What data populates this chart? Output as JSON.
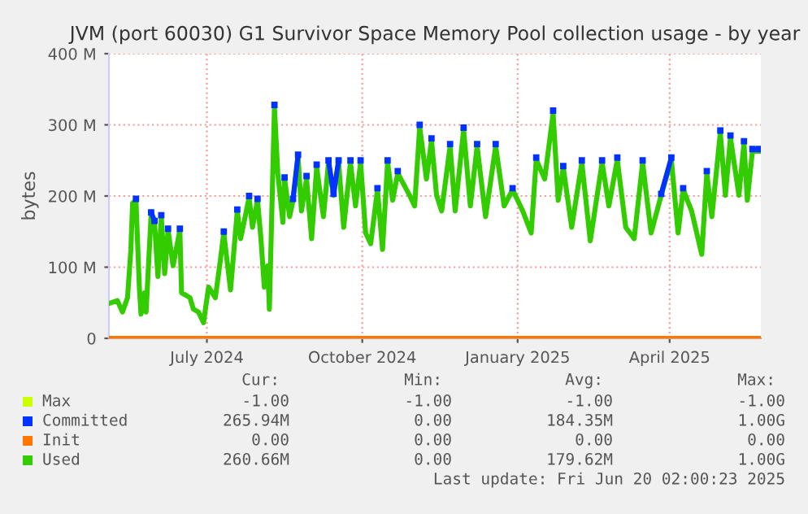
{
  "chart_data": {
    "type": "line",
    "title": "JVM (port 60030) G1 Survivor Space Memory Pool collection usage - by year",
    "ylabel": "bytes",
    "xlim": [
      "2024-05-04",
      "2025-05-25"
    ],
    "xticks": [
      {
        "value": "2024-07-01",
        "label": "July 2024"
      },
      {
        "value": "2024-10-01",
        "label": "October 2024"
      },
      {
        "value": "2025-01-01",
        "label": "January 2025"
      },
      {
        "value": "2025-04-01",
        "label": "April 2025"
      }
    ],
    "ylim": [
      0,
      400000000
    ],
    "yticks": [
      {
        "value": 0,
        "label": "0"
      },
      {
        "value": 100000000,
        "label": "100 M"
      },
      {
        "value": 200000000,
        "label": "200 M"
      },
      {
        "value": 300000000,
        "label": "300 M"
      },
      {
        "value": 400000000,
        "label": "400 M"
      }
    ],
    "grid": true,
    "legend": "bottom",
    "x": [
      "2024-05-04",
      "2024-05-09",
      "2024-05-12",
      "2024-05-15",
      "2024-05-17",
      "2024-05-18",
      "2024-05-20",
      "2024-05-22",
      "2024-05-23",
      "2024-05-25",
      "2024-05-26",
      "2024-05-29",
      "2024-05-31",
      "2024-06-02",
      "2024-06-04",
      "2024-06-06",
      "2024-06-08",
      "2024-06-11",
      "2024-06-15",
      "2024-06-16",
      "2024-06-19",
      "2024-06-21",
      "2024-06-23",
      "2024-06-26",
      "2024-06-29",
      "2024-07-02",
      "2024-07-06",
      "2024-07-09",
      "2024-07-11",
      "2024-07-15",
      "2024-07-19",
      "2024-07-21",
      "2024-07-26",
      "2024-07-28",
      "2024-07-31",
      "2024-08-02",
      "2024-08-04",
      "2024-08-06",
      "2024-08-07",
      "2024-08-10",
      "2024-08-12",
      "2024-08-15",
      "2024-08-16",
      "2024-08-19",
      "2024-08-21",
      "2024-08-24",
      "2024-08-26",
      "2024-08-29",
      "2024-09-01",
      "2024-09-04",
      "2024-09-08",
      "2024-09-11",
      "2024-09-14",
      "2024-09-17",
      "2024-09-20",
      "2024-09-24",
      "2024-09-27",
      "2024-09-30",
      "2024-10-03",
      "2024-10-06",
      "2024-10-10",
      "2024-10-13",
      "2024-10-16",
      "2024-10-19",
      "2024-10-22",
      "2024-10-29",
      "2024-11-01",
      "2024-11-04",
      "2024-11-08",
      "2024-11-11",
      "2024-11-14",
      "2024-11-17",
      "2024-11-22",
      "2024-11-25",
      "2024-11-30",
      "2024-12-04",
      "2024-12-08",
      "2024-12-13",
      "2024-12-19",
      "2024-12-24",
      "2024-12-29",
      "2025-01-04",
      "2025-01-09",
      "2025-01-12",
      "2025-01-17",
      "2025-01-22",
      "2025-01-25",
      "2025-01-28",
      "2025-02-02",
      "2025-02-08",
      "2025-02-13",
      "2025-02-20",
      "2025-02-24",
      "2025-03-01",
      "2025-03-06",
      "2025-03-11",
      "2025-03-16",
      "2025-03-21",
      "2025-03-27",
      "2025-04-02",
      "2025-04-06",
      "2025-04-09",
      "2025-04-14",
      "2025-04-20",
      "2025-04-23",
      "2025-04-26",
      "2025-05-01",
      "2025-05-04",
      "2025-05-07",
      "2025-05-12",
      "2025-05-15",
      "2025-05-17",
      "2025-05-20",
      "2025-05-24"
    ],
    "series": [
      {
        "name": "Max",
        "color": "#ccff00",
        "values": [
          null,
          null,
          null,
          null,
          null,
          null,
          null,
          null,
          null,
          null,
          null,
          null,
          null,
          null,
          null,
          null,
          null,
          null,
          null,
          null,
          null,
          null,
          null,
          null,
          null,
          null,
          null,
          null,
          null,
          null,
          null,
          null,
          null,
          null,
          null,
          null,
          null,
          null,
          null,
          null,
          null,
          null,
          null,
          null,
          null,
          null,
          null,
          null,
          null,
          null,
          null,
          null,
          null,
          null,
          null,
          null,
          null,
          null,
          null,
          null,
          null,
          null,
          null,
          null,
          null,
          null,
          null,
          null,
          null,
          null,
          null,
          null,
          null,
          null,
          null,
          null,
          null,
          null,
          null,
          null,
          null,
          null,
          null,
          null,
          null,
          null,
          null,
          null,
          null,
          null,
          null,
          null,
          null,
          null,
          null,
          null,
          null,
          null,
          null,
          null,
          null,
          null,
          null,
          null,
          null,
          null,
          null,
          null,
          null,
          null,
          null,
          null,
          null,
          null
        ]
      },
      {
        "name": "Committed",
        "color": "#0033ff",
        "marker": "square",
        "values": [
          null,
          null,
          null,
          null,
          null,
          null,
          196000000.0,
          null,
          null,
          null,
          null,
          177000000.0,
          165000000.0,
          null,
          173000000.0,
          null,
          154000000.0,
          null,
          154000000.0,
          null,
          null,
          null,
          null,
          null,
          null,
          null,
          null,
          null,
          150000000.0,
          null,
          181000000.0,
          null,
          200000000.0,
          null,
          196000000.0,
          null,
          null,
          null,
          null,
          328000000.0,
          null,
          null,
          226000000.0,
          null,
          196000000.0,
          258000000.0,
          null,
          228000000.0,
          null,
          244000000.0,
          null,
          250000000.0,
          203000000.0,
          250000000.0,
          null,
          250000000.0,
          null,
          250000000.0,
          null,
          null,
          211000000.0,
          null,
          250000000.0,
          null,
          235000000.0,
          null,
          null,
          300000000.0,
          null,
          281000000.0,
          null,
          null,
          273000000.0,
          null,
          296000000.0,
          null,
          273000000.0,
          null,
          273000000.0,
          null,
          211000000.0,
          null,
          null,
          254000000.0,
          null,
          320000000.0,
          null,
          242000000.0,
          null,
          250000000.0,
          null,
          250000000.0,
          null,
          254000000.0,
          null,
          null,
          250000000.0,
          null,
          203000000.0,
          254000000.0,
          null,
          211000000.0,
          null,
          null,
          235000000.0,
          null,
          292000000.0,
          null,
          285000000.0,
          null,
          277000000.0,
          null,
          266000000.0,
          266000000.0
        ]
      },
      {
        "name": "Init",
        "color": "#ff7700",
        "x": [
          "2024-05-04",
          "2025-05-24"
        ],
        "values": [
          0,
          0
        ]
      },
      {
        "name": "Used",
        "color": "#33cc00",
        "values": [
          49000000.0,
          53000000.0,
          37000000.0,
          57000000.0,
          125000000.0,
          190000000.0,
          194000000.0,
          72000000.0,
          34000000.0,
          64000000.0,
          37000000.0,
          175000000.0,
          163000000.0,
          87000000.0,
          171000000.0,
          91000000.0,
          152000000.0,
          102000000.0,
          152000000.0,
          64000000.0,
          60000000.0,
          57000000.0,
          41000000.0,
          37000000.0,
          22000000.0,
          72000000.0,
          57000000.0,
          110000000.0,
          148000000.0,
          68000000.0,
          179000000.0,
          140000000.0,
          198000000.0,
          156000000.0,
          194000000.0,
          140000000.0,
          72000000.0,
          102000000.0,
          41000000.0,
          324000000.0,
          232000000.0,
          163000000.0,
          224000000.0,
          171000000.0,
          194000000.0,
          255000000.0,
          179000000.0,
          224000000.0,
          140000000.0,
          240000000.0,
          171000000.0,
          247000000.0,
          201000000.0,
          247000000.0,
          156000000.0,
          247000000.0,
          186000000.0,
          247000000.0,
          148000000.0,
          133000000.0,
          209000000.0,
          125000000.0,
          247000000.0,
          194000000.0,
          232000000.0,
          201000000.0,
          186000000.0,
          297000000.0,
          224000000.0,
          278000000.0,
          201000000.0,
          179000000.0,
          270000000.0,
          179000000.0,
          293000000.0,
          186000000.0,
          270000000.0,
          171000000.0,
          270000000.0,
          186000000.0,
          209000000.0,
          179000000.0,
          148000000.0,
          251000000.0,
          224000000.0,
          316000000.0,
          194000000.0,
          240000000.0,
          156000000.0,
          247000000.0,
          137000000.0,
          247000000.0,
          186000000.0,
          251000000.0,
          156000000.0,
          140000000.0,
          247000000.0,
          148000000.0,
          201000000.0,
          251000000.0,
          148000000.0,
          209000000.0,
          179000000.0,
          118000000.0,
          232000000.0,
          171000000.0,
          289000000.0,
          201000000.0,
          282000000.0,
          201000000.0,
          274000000.0,
          194000000.0,
          263000000.0,
          263000000.0
        ]
      }
    ],
    "annotations": [
      "Cur:",
      "Min:",
      "Avg:",
      "Max:",
      "-1.00",
      "-1.00",
      "-1.00",
      "-1.00",
      "265.94M",
      "0.00",
      "184.35M",
      "1.00G",
      "0.00",
      "0.00",
      "0.00",
      "0.00",
      "260.66M",
      "0.00",
      "179.62M",
      "1.00G",
      "Last update: Fri Jun 20 02:00:23 2025"
    ]
  }
}
